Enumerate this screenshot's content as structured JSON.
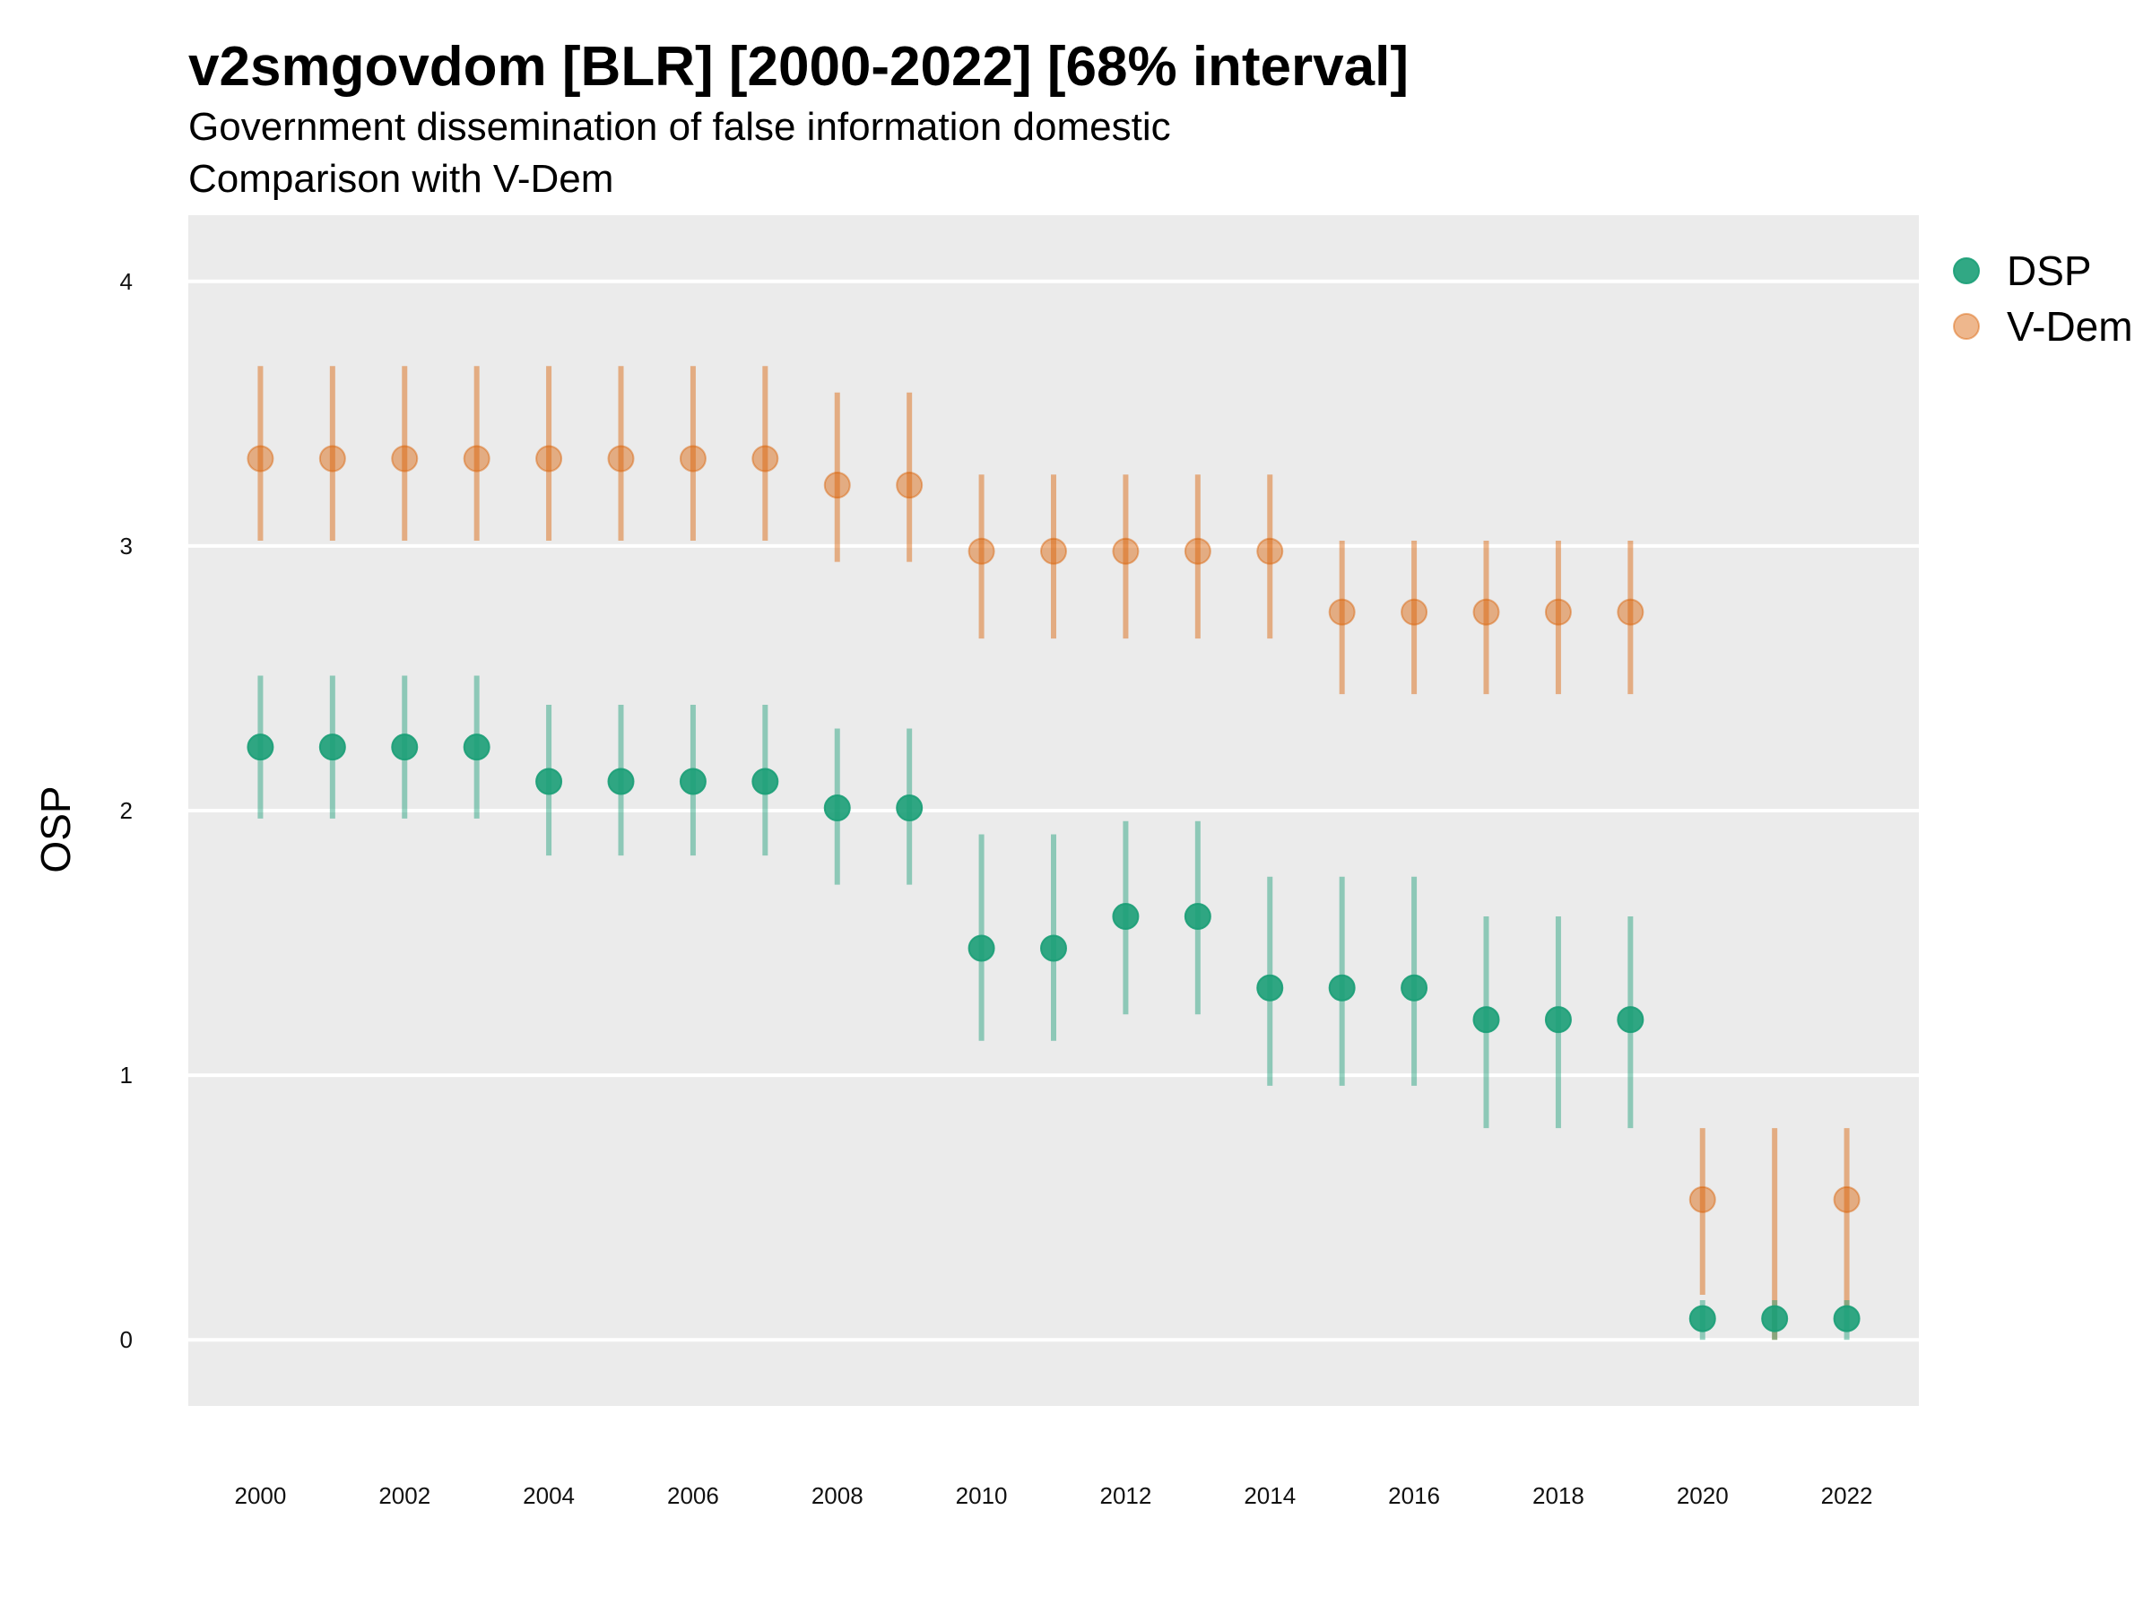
{
  "chart_data": {
    "type": "scatter",
    "title": "v2smgovdom [BLR] [2000-2022] [68% interval]",
    "subtitle": "Government dissemination of false information domestic",
    "subtitle2": "Comparison with V-Dem",
    "xlabel": "",
    "ylabel": "OSP",
    "xlim": [
      1999,
      2023
    ],
    "ylim": [
      -0.25,
      4.25
    ],
    "x_ticks": [
      "2000",
      "2002",
      "2004",
      "2006",
      "2008",
      "2010",
      "2012",
      "2014",
      "2016",
      "2018",
      "2020",
      "2022"
    ],
    "y_ticks": [
      "0",
      "1",
      "2",
      "3",
      "4"
    ],
    "grid": true,
    "legend_position": "right",
    "x": [
      2000,
      2001,
      2002,
      2003,
      2004,
      2005,
      2006,
      2007,
      2008,
      2009,
      2010,
      2011,
      2012,
      2013,
      2014,
      2015,
      2016,
      2017,
      2018,
      2019,
      2020,
      2021,
      2022
    ],
    "series": [
      {
        "name": "DSP",
        "color": "#1b9e77",
        "values": [
          2.24,
          2.24,
          2.24,
          2.24,
          2.11,
          2.11,
          2.11,
          2.11,
          2.01,
          2.01,
          1.48,
          1.48,
          1.6,
          1.6,
          1.33,
          1.33,
          1.33,
          1.21,
          1.21,
          1.21,
          0.08,
          0.08,
          0.08
        ],
        "lower": [
          1.97,
          1.97,
          1.97,
          1.97,
          1.83,
          1.83,
          1.83,
          1.83,
          1.72,
          1.72,
          1.13,
          1.13,
          1.23,
          1.23,
          0.96,
          0.96,
          0.96,
          0.8,
          0.8,
          0.8,
          0.0,
          0.0,
          0.0
        ],
        "upper": [
          2.51,
          2.51,
          2.51,
          2.51,
          2.4,
          2.4,
          2.4,
          2.4,
          2.31,
          2.31,
          1.91,
          1.91,
          1.96,
          1.96,
          1.75,
          1.75,
          1.75,
          1.6,
          1.6,
          1.6,
          0.15,
          0.15,
          0.15
        ]
      },
      {
        "name": "V-Dem",
        "color": "#d95f02",
        "values": [
          3.33,
          3.33,
          3.33,
          3.33,
          3.33,
          3.33,
          3.33,
          3.33,
          3.23,
          3.23,
          2.98,
          2.98,
          2.98,
          2.98,
          2.98,
          2.75,
          2.75,
          2.75,
          2.75,
          2.75,
          0.53,
          null,
          0.53
        ],
        "lower": [
          3.02,
          3.02,
          3.02,
          3.02,
          3.02,
          3.02,
          3.02,
          3.02,
          2.94,
          2.94,
          2.65,
          2.65,
          2.65,
          2.65,
          2.65,
          2.44,
          2.44,
          2.44,
          2.44,
          2.44,
          0.17,
          0.0,
          0.12
        ],
        "upper": [
          3.68,
          3.68,
          3.68,
          3.68,
          3.68,
          3.68,
          3.68,
          3.68,
          3.58,
          3.58,
          3.27,
          3.27,
          3.27,
          3.27,
          3.27,
          3.02,
          3.02,
          3.02,
          3.02,
          3.02,
          0.8,
          0.8,
          0.8
        ]
      }
    ]
  }
}
